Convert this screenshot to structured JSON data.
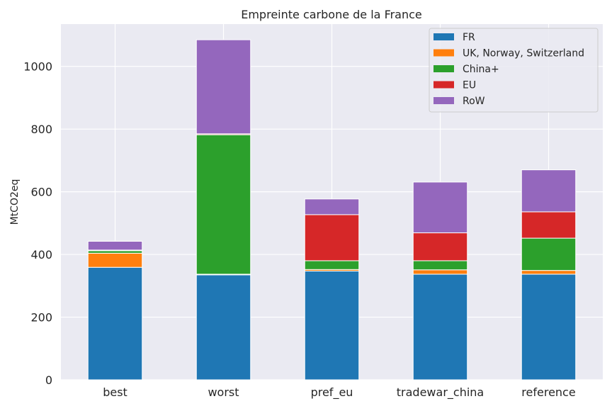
{
  "chart_data": {
    "type": "bar",
    "stacked": true,
    "title": "Empreinte carbone de la France",
    "xlabel": "",
    "ylabel": "MtCO2eq",
    "categories": [
      "best",
      "worst",
      "pref_eu",
      "tradewar_china",
      "reference"
    ],
    "ylim": [
      0,
      1135
    ],
    "yticks": [
      0,
      200,
      400,
      600,
      800,
      1000
    ],
    "grid": true,
    "legend_position": "top-right",
    "series": [
      {
        "name": "FR",
        "color": "#1f77b4",
        "values": [
          359,
          335,
          347,
          337,
          337
        ]
      },
      {
        "name": "UK, Norway, Switzerland",
        "color": "#ff7f0e",
        "values": [
          45,
          2,
          5,
          14,
          12
        ]
      },
      {
        "name": "China+",
        "color": "#2ca02c",
        "values": [
          8,
          445,
          28,
          29,
          103
        ]
      },
      {
        "name": "EU",
        "color": "#d62728",
        "values": [
          2,
          3,
          147,
          89,
          84
        ]
      },
      {
        "name": "RoW",
        "color": "#9467bd",
        "values": [
          28,
          300,
          50,
          162,
          134
        ]
      }
    ]
  }
}
